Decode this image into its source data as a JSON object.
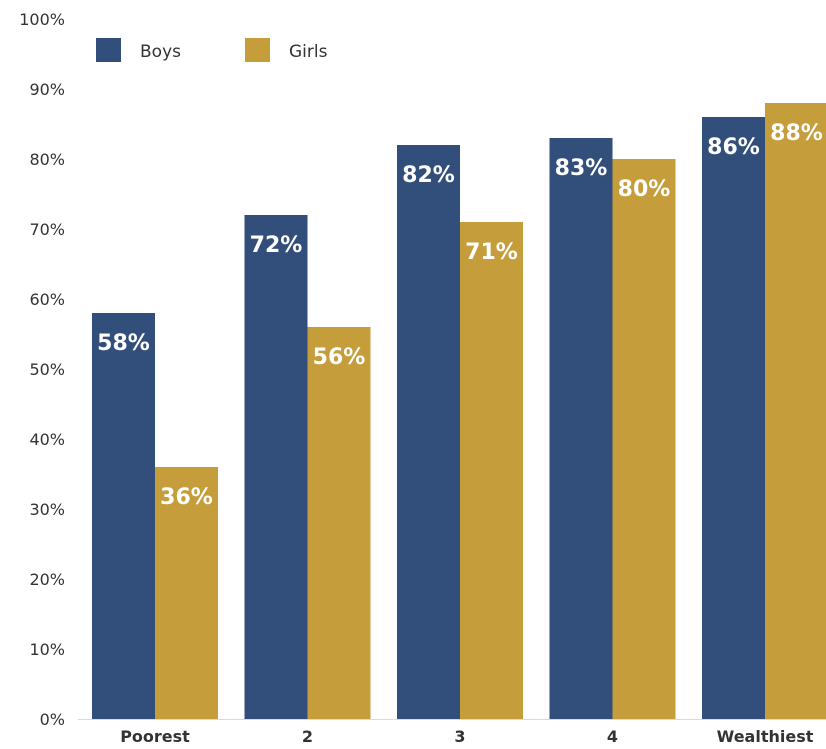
{
  "chart_data": {
    "type": "bar",
    "categories": [
      "Poorest",
      "2",
      "3",
      "4",
      "Wealthiest"
    ],
    "series": [
      {
        "name": "Boys",
        "values": [
          58,
          72,
          82,
          83,
          86
        ],
        "color": "#324e7a"
      },
      {
        "name": "Girls",
        "values": [
          36,
          56,
          71,
          80,
          88
        ],
        "color": "#c59d3a"
      }
    ],
    "ylim": [
      0,
      100
    ],
    "yticks": [
      "0%",
      "10%",
      "20%",
      "30%",
      "40%",
      "50%",
      "60%",
      "70%",
      "80%",
      "90%",
      "100%"
    ],
    "data_labels": [
      [
        "58%",
        "72%",
        "82%",
        "83%",
        "86%"
      ],
      [
        "36%",
        "56%",
        "71%",
        "80%",
        "88%"
      ]
    ],
    "legend": {
      "position": "top-left",
      "items": [
        "Boys",
        "Girls"
      ]
    },
    "grid": false,
    "title": "",
    "xlabel": "",
    "ylabel": ""
  }
}
